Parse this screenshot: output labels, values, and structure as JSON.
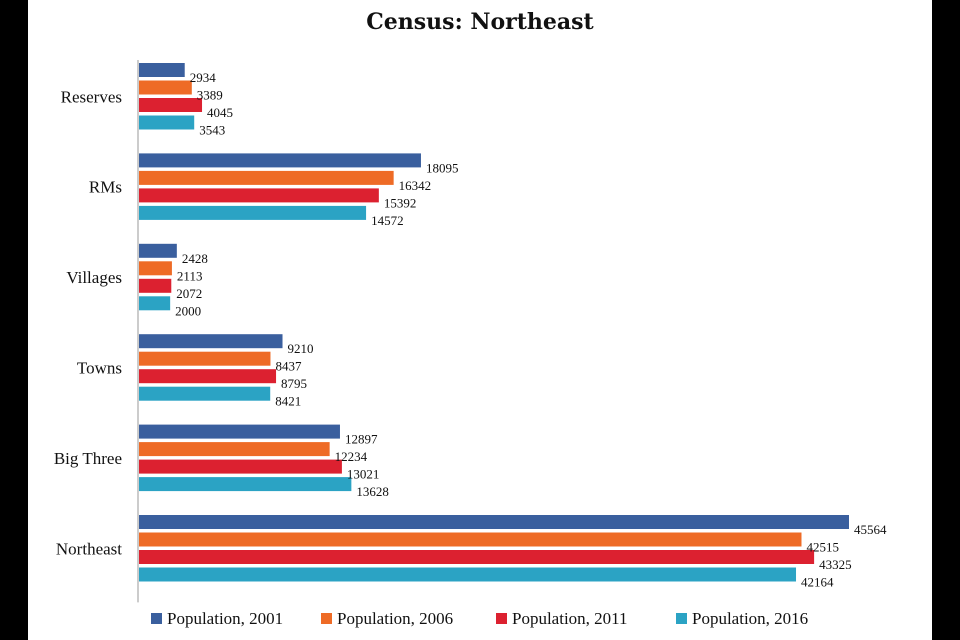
{
  "chart_data": {
    "type": "bar",
    "orientation": "horizontal",
    "title": "Census: Northeast",
    "xlabel": "",
    "ylabel": "",
    "categories": [
      "Reserves",
      "RMs",
      "Villages",
      "Towns",
      "Big Three",
      "Northeast"
    ],
    "series": [
      {
        "name": "Population, 2001",
        "color": "#3a5f9e",
        "values": [
          2934,
          18095,
          2428,
          9210,
          12897,
          45564
        ]
      },
      {
        "name": "Population, 2006",
        "color": "#ee6b26",
        "values": [
          3389,
          16342,
          2113,
          8437,
          12234,
          42515
        ]
      },
      {
        "name": "Population, 2011",
        "color": "#dc2130",
        "values": [
          4045,
          15392,
          2072,
          8795,
          13021,
          43325
        ]
      },
      {
        "name": "Population, 2016",
        "color": "#2ba3c4",
        "values": [
          3543,
          14572,
          2000,
          8421,
          13628,
          42164
        ]
      }
    ],
    "xlim": [
      0,
      45564
    ],
    "grid": false,
    "legend_position": "bottom"
  }
}
